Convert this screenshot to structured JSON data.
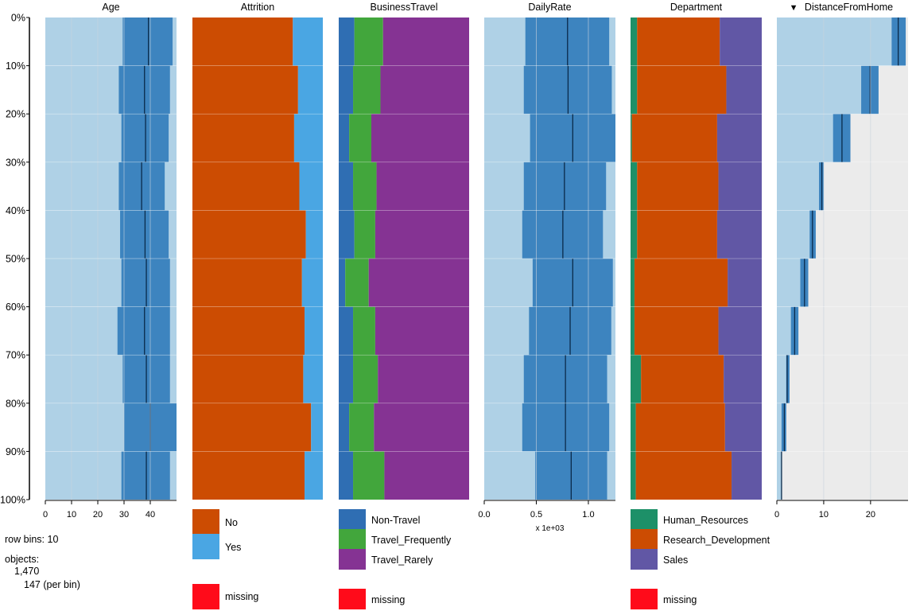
{
  "colors": {
    "panel_bg": "#ebebeb",
    "num_light": "#afd1e6",
    "num_mid": "#3d84bf",
    "num_line": "#0a2a4a",
    "grid": "#c8d3dc",
    "attr_no": "#cc4c02",
    "attr_yes": "#4aa6e3",
    "bt_nontravel": "#2f6eb3",
    "bt_freq": "#42a63c",
    "bt_rarely": "#853393",
    "dept_hr": "#1d9068",
    "dept_rd": "#cc4c02",
    "dept_sales": "#6157a5",
    "missing": "#ff0b1a"
  },
  "chart_data": {
    "type": "tableplot",
    "sort_column": "DistanceFromHome",
    "sort_arrow": "▼",
    "row_bins": 10,
    "y_ticks": [
      "0%",
      "10%",
      "20%",
      "30%",
      "40%",
      "50%",
      "60%",
      "70%",
      "80%",
      "90%",
      "100%"
    ],
    "info": {
      "row_bins_label": "row bins: 10",
      "objects_label": "objects:",
      "objects_total": "1,470",
      "per_bin": "147 (per bin)"
    },
    "numeric_columns": [
      {
        "name": "Age",
        "xlim": [
          0,
          50
        ],
        "ticks": [
          0,
          10,
          20,
          30,
          40
        ],
        "tick_labels": [
          "0",
          "10",
          "20",
          "30",
          "40"
        ],
        "grid": [
          10,
          20,
          30,
          40
        ],
        "axis_note": "",
        "bins": [
          {
            "low": 29.5,
            "mean": 39.3,
            "high": 48.5,
            "max": 50
          },
          {
            "low": 28.0,
            "mean": 37.8,
            "high": 47.5,
            "max": 50
          },
          {
            "low": 29.0,
            "mean": 38.2,
            "high": 47.0,
            "max": 50
          },
          {
            "low": 28.0,
            "mean": 36.7,
            "high": 45.5,
            "max": 50
          },
          {
            "low": 28.5,
            "mean": 38.0,
            "high": 47.0,
            "max": 50
          },
          {
            "low": 29.0,
            "mean": 38.5,
            "high": 47.5,
            "max": 50
          },
          {
            "low": 27.5,
            "mean": 37.8,
            "high": 47.5,
            "max": 50
          },
          {
            "low": 29.5,
            "mean": 38.5,
            "high": 47.5,
            "max": 50
          },
          {
            "low": 30.0,
            "mean": 40.0,
            "high": 50.0,
            "max": 50
          },
          {
            "low": 29.0,
            "mean": 38.5,
            "high": 47.5,
            "max": 50
          }
        ]
      },
      {
        "name": "DailyRate",
        "xlim": [
          0,
          1260
        ],
        "ticks": [
          0,
          500,
          1000
        ],
        "tick_labels": [
          "0.0",
          "0.5",
          "1.0"
        ],
        "grid": [
          500,
          1000
        ],
        "axis_note": "x 1e+03",
        "bins": [
          {
            "low": 395,
            "mean": 800,
            "high": 1200,
            "max": 1260
          },
          {
            "low": 380,
            "mean": 805,
            "high": 1225,
            "max": 1260
          },
          {
            "low": 440,
            "mean": 850,
            "high": 1260,
            "max": 1260
          },
          {
            "low": 380,
            "mean": 770,
            "high": 1170,
            "max": 1260
          },
          {
            "low": 365,
            "mean": 755,
            "high": 1140,
            "max": 1260
          },
          {
            "low": 465,
            "mean": 850,
            "high": 1235,
            "max": 1260
          },
          {
            "low": 430,
            "mean": 825,
            "high": 1220,
            "max": 1260
          },
          {
            "low": 380,
            "mean": 780,
            "high": 1180,
            "max": 1260
          },
          {
            "low": 365,
            "mean": 780,
            "high": 1200,
            "max": 1260
          },
          {
            "low": 490,
            "mean": 835,
            "high": 1180,
            "max": 1260
          }
        ]
      },
      {
        "name": "DistanceFromHome",
        "xlim": [
          0,
          28
        ],
        "ticks": [
          0,
          10,
          20
        ],
        "tick_labels": [
          "0",
          "10",
          "20"
        ],
        "grid": [
          10,
          20
        ],
        "axis_note": "",
        "bins": [
          {
            "low": 24.5,
            "mean": 25.9,
            "high": 27.5,
            "max": 27.5
          },
          {
            "low": 18.0,
            "mean": 19.9,
            "high": 21.7,
            "max": 21.7
          },
          {
            "low": 12.0,
            "mean": 13.9,
            "high": 15.7,
            "max": 15.7
          },
          {
            "low": 9.0,
            "mean": 9.6,
            "high": 10.0,
            "max": 10.0
          },
          {
            "low": 7.0,
            "mean": 7.6,
            "high": 8.3,
            "max": 8.3
          },
          {
            "low": 5.0,
            "mean": 5.9,
            "high": 6.7,
            "max": 6.7
          },
          {
            "low": 3.0,
            "mean": 3.8,
            "high": 4.6,
            "max": 4.6
          },
          {
            "low": 2.0,
            "mean": 2.2,
            "high": 2.7,
            "max": 2.7
          },
          {
            "low": 1.0,
            "mean": 1.6,
            "high": 2.0,
            "max": 2.0
          },
          {
            "low": 1.0,
            "mean": 1.0,
            "high": 1.0,
            "max": 1.0
          }
        ]
      }
    ],
    "categorical_columns": [
      {
        "name": "Attrition",
        "categories": [
          "No",
          "Yes"
        ],
        "color_keys": [
          "attr_no",
          "attr_yes"
        ],
        "missing_label": "missing",
        "bins": [
          [
            0.77,
            0.23
          ],
          [
            0.81,
            0.19
          ],
          [
            0.78,
            0.22
          ],
          [
            0.82,
            0.18
          ],
          [
            0.87,
            0.13
          ],
          [
            0.84,
            0.16
          ],
          [
            0.86,
            0.14
          ],
          [
            0.85,
            0.15
          ],
          [
            0.91,
            0.09
          ],
          [
            0.86,
            0.14
          ]
        ]
      },
      {
        "name": "BusinessTravel",
        "categories": [
          "Non-Travel",
          "Travel_Frequently",
          "Travel_Rarely"
        ],
        "color_keys": [
          "bt_nontravel",
          "bt_freq",
          "bt_rarely"
        ],
        "missing_label": "missing",
        "bins": [
          [
            0.12,
            0.22,
            0.66
          ],
          [
            0.11,
            0.21,
            0.68
          ],
          [
            0.08,
            0.17,
            0.75
          ],
          [
            0.11,
            0.18,
            0.71
          ],
          [
            0.12,
            0.16,
            0.72
          ],
          [
            0.05,
            0.18,
            0.77
          ],
          [
            0.11,
            0.17,
            0.72
          ],
          [
            0.11,
            0.19,
            0.7
          ],
          [
            0.08,
            0.19,
            0.73
          ],
          [
            0.11,
            0.24,
            0.65
          ]
        ]
      },
      {
        "name": "Department",
        "categories": [
          "Human_Resources",
          "Research_Development",
          "Sales"
        ],
        "color_keys": [
          "dept_hr",
          "dept_rd",
          "dept_sales"
        ],
        "missing_label": "missing",
        "bins": [
          [
            0.05,
            0.63,
            0.32
          ],
          [
            0.05,
            0.68,
            0.27
          ],
          [
            0.01,
            0.65,
            0.34
          ],
          [
            0.05,
            0.62,
            0.33
          ],
          [
            0.05,
            0.61,
            0.34
          ],
          [
            0.03,
            0.71,
            0.26
          ],
          [
            0.03,
            0.64,
            0.33
          ],
          [
            0.08,
            0.63,
            0.29
          ],
          [
            0.04,
            0.68,
            0.28
          ],
          [
            0.04,
            0.73,
            0.23
          ]
        ]
      }
    ]
  }
}
